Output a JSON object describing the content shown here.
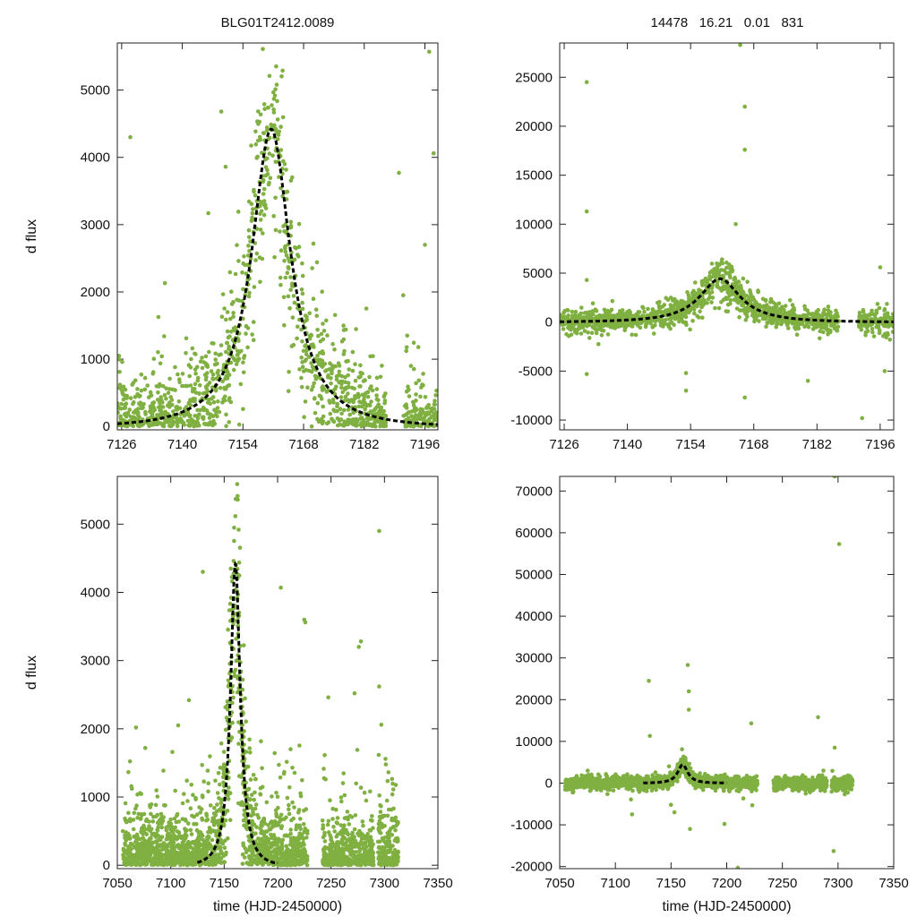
{
  "header": {
    "object_id": "BLG01T2412.0089",
    "stats": "14478   16.21   0.01   831"
  },
  "colors": {
    "points": "#7fb041",
    "fit": "#000000",
    "frame": "#222222"
  },
  "chart_data": [
    {
      "id": "zoom-top",
      "type": "scatter",
      "ylabel": "d flux",
      "xlabel": "",
      "xlim": [
        7125,
        7199
      ],
      "ylim": [
        -50,
        5700
      ],
      "xticks": [
        7126,
        7140,
        7154,
        7168,
        7182,
        7196
      ],
      "yticks": [
        0,
        1000,
        2000,
        3000,
        4000,
        5000
      ],
      "series": [
        {
          "name": "data",
          "kind": "points",
          "x_range": [
            7125,
            7199
          ],
          "gaps": [
            [
              7187,
              7191
            ]
          ],
          "n": 1400,
          "scatter_base": 350,
          "outliers": [
            [
              7128,
              4300
            ],
            [
              7149,
              4680
            ],
            [
              7150,
              3860
            ],
            [
              7146,
              3170
            ],
            [
              7136,
              2130
            ],
            [
              7190,
              3770
            ],
            [
              7197,
              5570
            ],
            [
              7198,
              4060
            ],
            [
              7196,
              2700
            ],
            [
              7191,
              1950
            ]
          ]
        },
        {
          "name": "model",
          "kind": "fit_curve",
          "peak_time": 7160.5,
          "peak_flux": 4420,
          "width_days": 5.2,
          "baseline": 0
        }
      ]
    },
    {
      "id": "zoom-top-residual",
      "type": "scatter",
      "ylabel": "",
      "xlabel": "",
      "xlim": [
        7125,
        7199
      ],
      "ylim": [
        -11000,
        28500
      ],
      "xticks": [
        7126,
        7140,
        7154,
        7168,
        7182,
        7196
      ],
      "yticks": [
        -10000,
        -5000,
        0,
        5000,
        10000,
        15000,
        20000,
        25000
      ],
      "series": [
        {
          "name": "data",
          "kind": "points",
          "x_range": [
            7125,
            7199
          ],
          "gaps": [
            [
              7187,
              7191
            ]
          ],
          "n": 1500,
          "scatter_base": 450,
          "outliers": [
            [
              7131,
              24500
            ],
            [
              7131,
              11300
            ],
            [
              7131,
              4300
            ],
            [
              7131,
              -5300
            ],
            [
              7153,
              -5200
            ],
            [
              7153,
              -7000
            ],
            [
              7165,
              28300
            ],
            [
              7166,
              22000
            ],
            [
              7166,
              17600
            ],
            [
              7164,
              10000
            ],
            [
              7166,
              -7700
            ],
            [
              7180,
              -6000
            ],
            [
              7192,
              -9800
            ],
            [
              7196,
              5600
            ],
            [
              7197,
              -5000
            ]
          ]
        },
        {
          "name": "model",
          "kind": "fit_curve",
          "peak_time": 7160.5,
          "peak_flux": 4420,
          "width_days": 5.2,
          "baseline": 0
        }
      ]
    },
    {
      "id": "full-bottom",
      "type": "scatter",
      "ylabel": "d flux",
      "xlabel": "time (HJD-2450000)",
      "xlim": [
        7050,
        7350
      ],
      "ylim": [
        -50,
        5700
      ],
      "xticks": [
        7050,
        7100,
        7150,
        7200,
        7250,
        7300,
        7350
      ],
      "yticks": [
        0,
        1000,
        2000,
        3000,
        4000,
        5000
      ],
      "series": [
        {
          "name": "data",
          "kind": "points",
          "x_range": [
            7055,
            7313
          ],
          "gaps": [
            [
              7228,
              7242
            ],
            [
              7290,
              7294
            ]
          ],
          "n": 2600,
          "scatter_base": 420,
          "outliers": [
            [
              7130,
              4300
            ],
            [
              7117,
              2420
            ],
            [
              7107,
              2050
            ],
            [
              7203,
              4070
            ],
            [
              7225,
              3600
            ],
            [
              7226,
              3560
            ],
            [
              7278,
              3280
            ],
            [
              7276,
              3200
            ],
            [
              7295,
              4900
            ],
            [
              7272,
              2520
            ],
            [
              7295,
              2620
            ],
            [
              7297,
              2060
            ],
            [
              7301,
              1560
            ]
          ]
        },
        {
          "name": "model",
          "kind": "fit_curve",
          "peak_time": 7160.5,
          "peak_flux": 4420,
          "width_days": 5.2,
          "baseline": 0,
          "x_range": [
            7125,
            7200
          ]
        }
      ]
    },
    {
      "id": "full-bottom-residual",
      "type": "scatter",
      "ylabel": "",
      "xlabel": "time (HJD-2450000)",
      "xlim": [
        7050,
        7350
      ],
      "ylim": [
        -20500,
        73500
      ],
      "xticks": [
        7050,
        7100,
        7150,
        7200,
        7250,
        7300,
        7350
      ],
      "yticks": [
        -20000,
        -10000,
        0,
        10000,
        20000,
        30000,
        40000,
        50000,
        60000,
        70000
      ],
      "series": [
        {
          "name": "data",
          "kind": "points",
          "x_range": [
            7055,
            7313
          ],
          "gaps": [
            [
              7228,
              7242
            ],
            [
              7290,
              7294
            ]
          ],
          "n": 2700,
          "scatter_base": 600,
          "outliers": [
            [
              7297,
              73500
            ],
            [
              7301,
              57300
            ],
            [
              7130,
              24500
            ],
            [
              7131,
              11300
            ],
            [
              7165,
              28300
            ],
            [
              7166,
              22000
            ],
            [
              7166,
              17600
            ],
            [
              7222,
              14300
            ],
            [
              7282,
              15800
            ],
            [
              7297,
              8500
            ],
            [
              7296,
              -16300
            ],
            [
              7210,
              -20300
            ],
            [
              7153,
              -7000
            ],
            [
              7150,
              -5200
            ],
            [
              7115,
              -7500
            ],
            [
              7223,
              -5300
            ],
            [
              7167,
              -11000
            ],
            [
              7198,
              -9800
            ]
          ]
        },
        {
          "name": "model",
          "kind": "fit_curve",
          "peak_time": 7160.5,
          "peak_flux": 4420,
          "width_days": 5.2,
          "baseline": 0,
          "x_range": [
            7125,
            7200
          ]
        }
      ]
    }
  ]
}
